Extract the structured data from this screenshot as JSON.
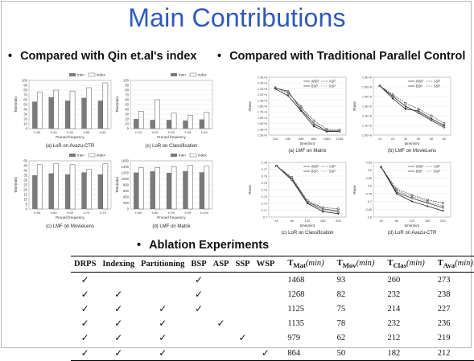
{
  "title": "Main Contributions",
  "bullets": {
    "left": "Compared with Qin et.al's index",
    "right": "Compared with Traditional Parallel Control",
    "ablation": "Ablation Experiments"
  },
  "bullet_symbol": "•",
  "bar_charts": [
    {
      "caption": "(a) LoR on Avazu-CTR",
      "xlabel": "Pruned frequency",
      "ylabel": "Time(min)",
      "legend": [
        "train",
        "index"
      ],
      "categories": [
        "f=40",
        "f=45",
        "f=50",
        "f=55",
        "f=60"
      ],
      "ylim": [
        0,
        100
      ],
      "yticks": [
        "0",
        "10",
        "20",
        "30",
        "40",
        "50",
        "60",
        "70",
        "80",
        "90",
        "100"
      ],
      "train": [
        56,
        65,
        58,
        64,
        58
      ],
      "index": [
        76,
        80,
        78,
        85,
        95
      ]
    },
    {
      "caption": "(c) LoR on Classification",
      "xlabel": "Pruned frequency",
      "ylabel": "Time(min)",
      "legend": [
        "train",
        "index"
      ],
      "categories": [
        "f=20",
        "f=25",
        "f=30",
        "f=35",
        "f=40"
      ],
      "ylim": [
        0,
        100
      ],
      "yticks": [
        "0",
        "10",
        "20",
        "30",
        "40",
        "50",
        "60",
        "70",
        "80",
        "90",
        "100"
      ],
      "train": [
        20,
        18,
        18,
        17,
        19
      ],
      "index": [
        36,
        60,
        32,
        28,
        34
      ]
    },
    {
      "caption": "(c) LMF on MovieLens",
      "xlabel": "Pruned frequency",
      "ylabel": "Time(min)",
      "legend": [
        "train",
        "index"
      ],
      "categories": [
        "f=55",
        "f=60",
        "f=65",
        "f=70",
        "f=75"
      ],
      "ylim": [
        0,
        50
      ],
      "yticks": [
        "0",
        "5",
        "10",
        "15",
        "20",
        "25",
        "30",
        "35",
        "40",
        "45",
        "50"
      ],
      "train": [
        35,
        37,
        36,
        38,
        36
      ],
      "index": [
        46,
        47,
        46,
        41,
        47
      ]
    },
    {
      "caption": "(d) LMF on Matrix",
      "xlabel": "Pruned frequency",
      "ylabel": "Time(min)",
      "legend": [
        "train",
        "index"
      ],
      "categories": [
        "f=80",
        "f=85",
        "f=90",
        "f=95",
        "f=100"
      ],
      "ylim": [
        0,
        1600
      ],
      "yticks": [
        "0",
        "200",
        "400",
        "600",
        "800",
        "1000",
        "1200",
        "1400",
        "1600"
      ],
      "train": [
        1210,
        1250,
        1200,
        1260,
        1220
      ],
      "index": [
        1370,
        1380,
        1400,
        1450,
        1420
      ]
    }
  ],
  "line_charts": [
    {
      "caption": "(a) LMF on Matrix",
      "xlabel": "time(min)",
      "ylabel": "Rmse",
      "legend": [
        "WSP",
        "ASP",
        "BSP",
        "SSP"
      ],
      "x": [
        216,
        432,
        648,
        864,
        1080,
        1296
      ],
      "ylim": [
        1300000.0,
        2300000.0
      ],
      "yticks": [
        "1.3E+6",
        "1.4E+6",
        "1.5E+6",
        "1.6E+6",
        "1.7E+6",
        "1.8E+6",
        "1.9E+6",
        "2.0E+6",
        "2.1E+6",
        "2.2E+6",
        "2.3E+6"
      ],
      "series": [
        [
          2110000.0,
          2060000.0,
          1740000.0,
          1500000.0,
          1370000.0,
          1370000.0
        ],
        [
          2120000.0,
          2040000.0,
          1780000.0,
          1550000.0,
          1400000.0,
          1390000.0
        ],
        [
          2100000.0,
          1980000.0,
          1720000.0,
          1450000.0,
          1360000.0,
          1360000.0
        ],
        [
          2120000.0,
          2020000.0,
          1800000.0,
          1480000.0,
          1380000.0,
          1370000.0
        ]
      ]
    },
    {
      "caption": "(b) LMF on MovieLens",
      "xlabel": "time(min)",
      "ylabel": "Rmse",
      "legend": [
        "WSP",
        "ASP",
        "BSP",
        "SSP"
      ],
      "x": [
        10,
        20,
        30,
        40,
        50,
        60
      ],
      "ylim": [
        1000000.0,
        1600000.0
      ],
      "yticks": [
        "1.0E+6",
        "1.1E+6",
        "1.2E+6",
        "1.3E+6",
        "1.4E+6",
        "1.5E+6",
        "1.6E+6"
      ],
      "series": [
        [
          1510000.0,
          1400000.0,
          1300000.0,
          1230000.0,
          1150000.0,
          1080000.0
        ],
        [
          1510000.0,
          1420000.0,
          1330000.0,
          1270000.0,
          1200000.0,
          1120000.0
        ],
        [
          1510000.0,
          1380000.0,
          1270000.0,
          1250000.0,
          1170000.0,
          1100000.0
        ],
        [
          1510000.0,
          1410000.0,
          1290000.0,
          1240000.0,
          1160000.0,
          1090000.0
        ]
      ]
    },
    {
      "caption": "(c) LoR on Classification",
      "xlabel": "time(min)",
      "ylabel": "Rmse",
      "legend": [
        "WSP",
        "ASP",
        "BSP",
        "SSP"
      ],
      "x": [
        40,
        80,
        120,
        160,
        200
      ],
      "ylim": [
        0.7,
        0.78
      ],
      "yticks": [
        "0.7",
        "0.71",
        "0.72",
        "0.73",
        "0.74",
        "0.75",
        "0.76",
        "0.77",
        "0.78"
      ],
      "series": [
        [
          0.775,
          0.756,
          0.722,
          0.712,
          0.709
        ],
        [
          0.775,
          0.758,
          0.724,
          0.714,
          0.712
        ],
        [
          0.775,
          0.754,
          0.72,
          0.708,
          0.705
        ],
        [
          0.775,
          0.755,
          0.721,
          0.71,
          0.707
        ]
      ]
    },
    {
      "caption": "(d) LoR on Avazu-CTR",
      "xlabel": "time(min)",
      "ylabel": "Rmse",
      "legend": [
        "WSP",
        "ASP",
        "BSP",
        "SSP"
      ],
      "x": [
        40,
        80,
        120,
        160,
        200
      ],
      "ylim": [
        0.6,
        0.95
      ],
      "yticks": [
        "0.6",
        "0.65",
        "0.7",
        "0.75",
        "0.8",
        "0.85",
        "0.9",
        "0.95"
      ],
      "series": [
        [
          0.92,
          0.76,
          0.72,
          0.69,
          0.66
        ],
        [
          0.92,
          0.78,
          0.74,
          0.71,
          0.69
        ],
        [
          0.92,
          0.75,
          0.7,
          0.67,
          0.64
        ],
        [
          0.92,
          0.77,
          0.73,
          0.7,
          0.67
        ]
      ]
    }
  ],
  "ablation_table": {
    "headers": {
      "drps": "DRPS",
      "indexing": "Indexing",
      "partitioning": "Partitioning",
      "bsp": "BSP",
      "asp": "ASP",
      "ssp": "SSP",
      "wsp": "WSP",
      "t_mat_main": "T",
      "t_mat_sub": "Mat",
      "t_mov_main": "T",
      "t_mov_sub": "Mov",
      "t_clas_main": "T",
      "t_clas_sub": "Clas",
      "t_ava_main": "T",
      "t_ava_sub": "Ava",
      "unit": "(min)"
    },
    "check_symbol": "✓",
    "rows": [
      {
        "drps": "✓",
        "indexing": "",
        "partitioning": "",
        "bsp": "✓",
        "asp": "",
        "ssp": "",
        "wsp": "",
        "t_mat": "1468",
        "t_mov": "93",
        "t_clas": "260",
        "t_ava": "273"
      },
      {
        "drps": "✓",
        "indexing": "✓",
        "partitioning": "",
        "bsp": "✓",
        "asp": "",
        "ssp": "",
        "wsp": "",
        "t_mat": "1268",
        "t_mov": "82",
        "t_clas": "232",
        "t_ava": "238"
      },
      {
        "drps": "✓",
        "indexing": "✓",
        "partitioning": "✓",
        "bsp": "✓",
        "asp": "",
        "ssp": "",
        "wsp": "",
        "t_mat": "1125",
        "t_mov": "75",
        "t_clas": "214",
        "t_ava": "227"
      },
      {
        "drps": "✓",
        "indexing": "✓",
        "partitioning": "✓",
        "bsp": "",
        "asp": "✓",
        "ssp": "",
        "wsp": "",
        "t_mat": "1135",
        "t_mov": "78",
        "t_clas": "232",
        "t_ava": "236"
      },
      {
        "drps": "✓",
        "indexing": "✓",
        "partitioning": "✓",
        "bsp": "",
        "asp": "",
        "ssp": "✓",
        "wsp": "",
        "t_mat": "979",
        "t_mov": "62",
        "t_clas": "212",
        "t_ava": "219"
      },
      {
        "drps": "✓",
        "indexing": "✓",
        "partitioning": "✓",
        "bsp": "",
        "asp": "",
        "ssp": "",
        "wsp": "✓",
        "t_mat": "864",
        "t_mov": "50",
        "t_clas": "182",
        "t_ava": "212"
      }
    ]
  }
}
